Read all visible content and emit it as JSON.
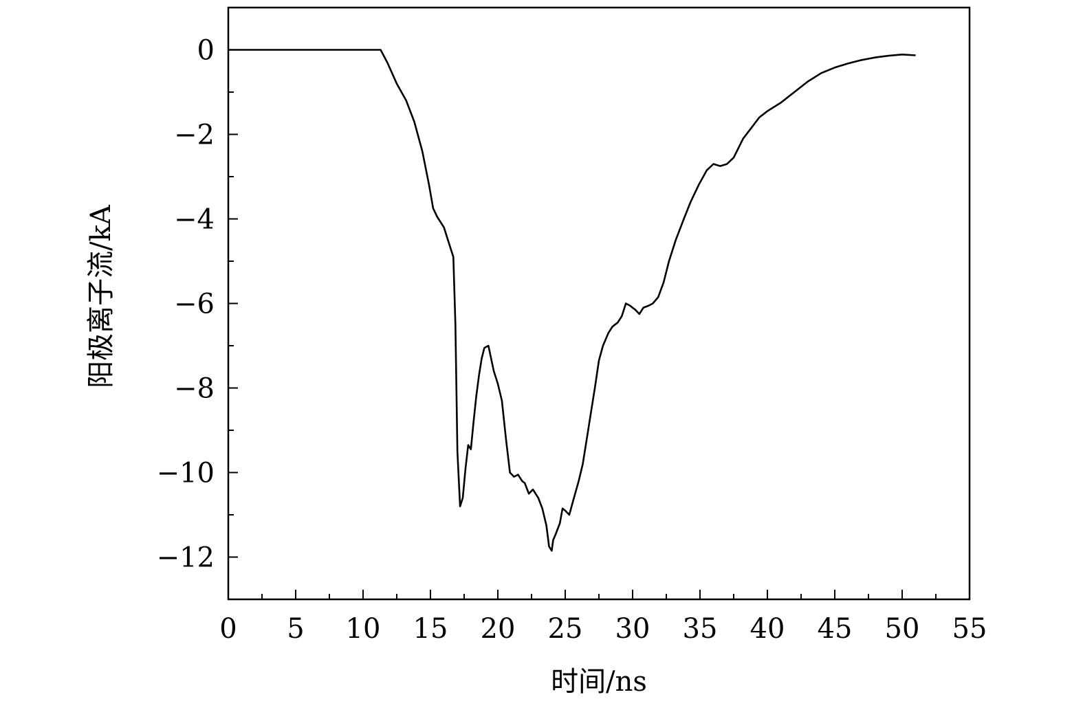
{
  "chart_data": {
    "type": "line",
    "title": "",
    "xlabel": "时间/ns",
    "ylabel": "阳极离子流/kA",
    "xlim": [
      0,
      55
    ],
    "ylim": [
      -13,
      1
    ],
    "x_ticks": [
      0,
      5,
      10,
      15,
      20,
      25,
      30,
      35,
      40,
      45,
      50,
      55
    ],
    "y_ticks": [
      0,
      -2,
      -4,
      -6,
      -8,
      -10,
      -12
    ],
    "x_tick_labels": [
      "0",
      "5",
      "10",
      "15",
      "20",
      "25",
      "30",
      "35",
      "40",
      "45",
      "50",
      "55"
    ],
    "y_tick_labels": [
      "0",
      "−2",
      "−4",
      "−6",
      "−8",
      "−10",
      "−12"
    ],
    "grid": false,
    "legend": "none",
    "line_color": "#000000",
    "series": [
      {
        "x": [
          0,
          5,
          9,
          10,
          11,
          11.3,
          11.8,
          12.5,
          13.2,
          13.8,
          14.4,
          14.9,
          15.2,
          15.5,
          16.0,
          16.4,
          16.7,
          16.85,
          17.0,
          17.2,
          17.4,
          17.6,
          17.8,
          18.0,
          18.2,
          18.4,
          18.6,
          18.8,
          19.0,
          19.3,
          19.5,
          19.7,
          20.0,
          20.3,
          20.6,
          20.9,
          21.2,
          21.5,
          21.8,
          22.0,
          22.3,
          22.6,
          23.0,
          23.3,
          23.6,
          23.8,
          24.0,
          24.1,
          24.3,
          24.6,
          24.8,
          25.0,
          25.3,
          25.6,
          26.0,
          26.3,
          26.6,
          26.9,
          27.2,
          27.5,
          27.8,
          28.2,
          28.5,
          28.9,
          29.2,
          29.5,
          29.8,
          30.2,
          30.5,
          30.8,
          31.2,
          31.5,
          31.9,
          32.3,
          32.7,
          33.2,
          33.8,
          34.3,
          34.9,
          35.5,
          36.0,
          36.5,
          37.0,
          37.5,
          38.2,
          38.8,
          39.4,
          40.0,
          41.0,
          42.0,
          43.0,
          44.0,
          45.0,
          46.0,
          47.0,
          48.0,
          49.0,
          50.0,
          51.0
        ],
        "y": [
          0,
          0,
          0,
          0,
          0,
          0,
          -0.3,
          -0.8,
          -1.2,
          -1.7,
          -2.4,
          -3.2,
          -3.75,
          -3.95,
          -4.2,
          -4.6,
          -4.9,
          -6.5,
          -9.5,
          -10.8,
          -10.6,
          -9.9,
          -9.35,
          -9.45,
          -8.8,
          -8.2,
          -7.7,
          -7.3,
          -7.05,
          -7.0,
          -7.3,
          -7.6,
          -7.9,
          -8.3,
          -9.2,
          -10.0,
          -10.1,
          -10.05,
          -10.2,
          -10.25,
          -10.5,
          -10.4,
          -10.6,
          -10.85,
          -11.25,
          -11.75,
          -11.85,
          -11.6,
          -11.45,
          -11.2,
          -10.85,
          -10.9,
          -11.0,
          -10.65,
          -10.2,
          -9.8,
          -9.2,
          -8.6,
          -8.0,
          -7.35,
          -7.0,
          -6.7,
          -6.55,
          -6.45,
          -6.3,
          -6.0,
          -6.05,
          -6.15,
          -6.25,
          -6.1,
          -6.05,
          -6.0,
          -5.85,
          -5.5,
          -5.0,
          -4.5,
          -4.0,
          -3.6,
          -3.2,
          -2.85,
          -2.7,
          -2.75,
          -2.7,
          -2.55,
          -2.1,
          -1.85,
          -1.6,
          -1.45,
          -1.25,
          -1.0,
          -0.75,
          -0.55,
          -0.42,
          -0.32,
          -0.24,
          -0.18,
          -0.14,
          -0.11,
          -0.13
        ]
      }
    ]
  }
}
